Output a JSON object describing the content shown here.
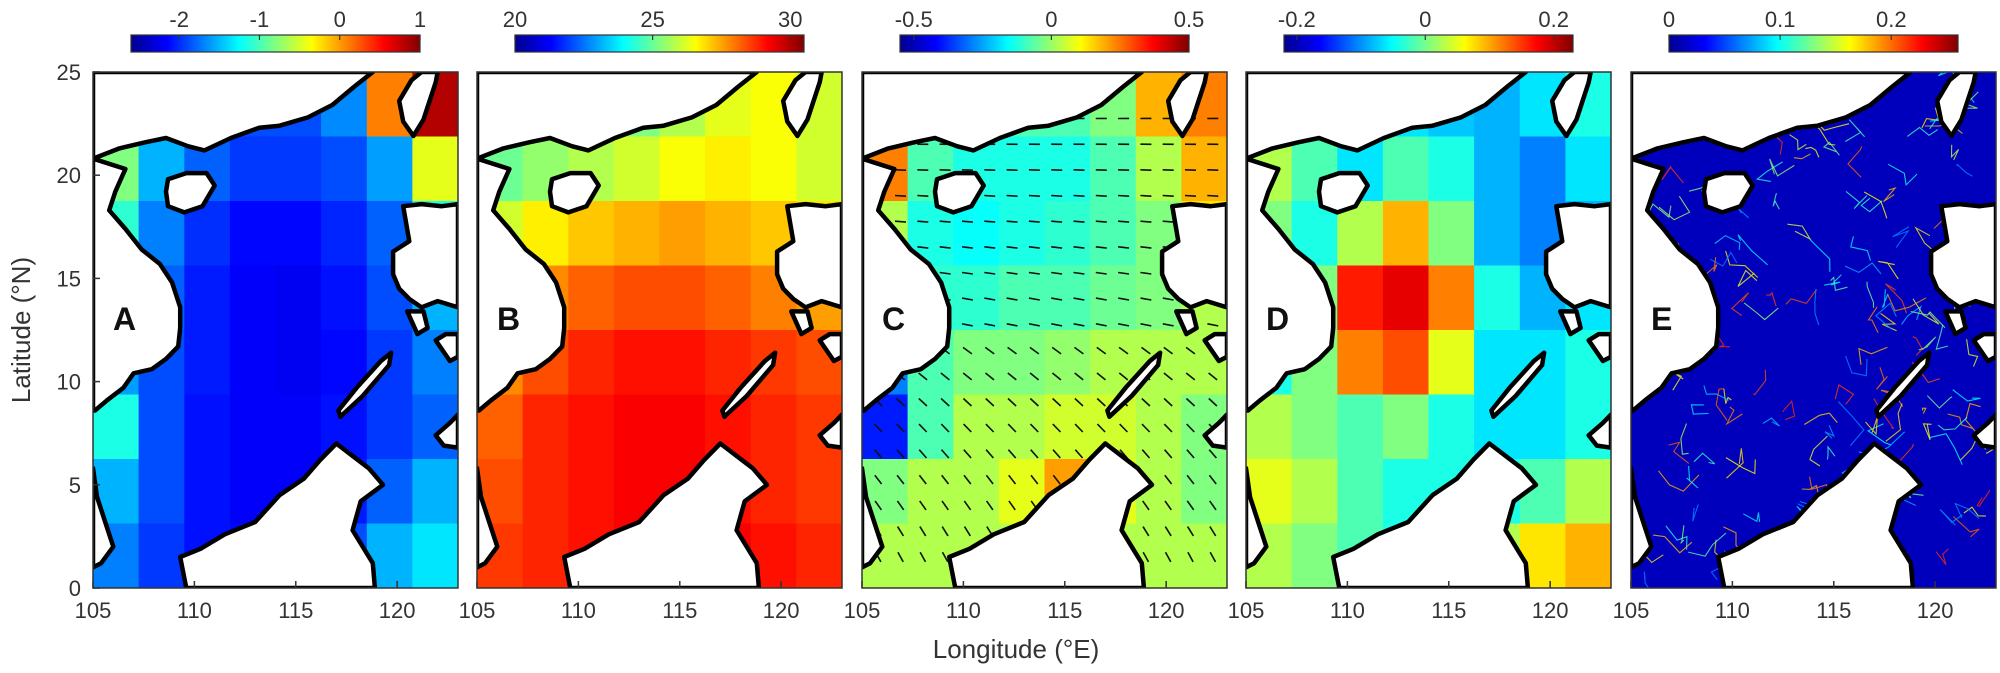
{
  "figure": {
    "xlabel": "Longitude (°E)",
    "ylabel": "Latitude (°N)",
    "x_ticks": [
      "105",
      "110",
      "115",
      "120"
    ],
    "y_ticks": [
      "0",
      "5",
      "10",
      "15",
      "20",
      "25"
    ],
    "xlim": [
      105,
      123
    ],
    "ylim": [
      0,
      25
    ]
  },
  "colors": {
    "land": "#ffffff",
    "coastline": "#000000",
    "colormap": [
      "#00008f",
      "#0000ff",
      "#0080ff",
      "#00ffff",
      "#80ff80",
      "#ffff00",
      "#ff8000",
      "#ff0000",
      "#800000"
    ]
  },
  "chart_data": [
    {
      "type": "heatmap",
      "panel": "A",
      "colorbar_ticks": [
        "-2",
        "-1",
        "0",
        "1"
      ],
      "colorbar_range": [
        -2.6,
        1.0
      ],
      "field_levels": [
        [
          0.3,
          0.26,
          0.22,
          0.2,
          0.2,
          0.26,
          0.75,
          0.95
        ],
        [
          0.5,
          0.3,
          0.22,
          0.18,
          0.18,
          0.2,
          0.28,
          0.6
        ],
        [
          0.42,
          0.25,
          0.17,
          0.13,
          0.13,
          0.16,
          0.22,
          0.4
        ],
        [
          0.32,
          0.22,
          0.15,
          0.12,
          0.11,
          0.14,
          0.2,
          0.3
        ],
        [
          0.28,
          0.2,
          0.15,
          0.12,
          0.11,
          0.13,
          0.18,
          0.25
        ],
        [
          0.4,
          0.2,
          0.14,
          0.12,
          0.12,
          0.14,
          0.18,
          0.22
        ],
        [
          0.3,
          0.2,
          0.14,
          0.12,
          0.12,
          0.15,
          0.22,
          0.3
        ],
        [
          0.25,
          0.18,
          0.14,
          0.13,
          0.14,
          0.2,
          0.3,
          0.35
        ]
      ]
    },
    {
      "type": "heatmap",
      "panel": "B",
      "colorbar_ticks": [
        "20",
        "25",
        "30"
      ],
      "colorbar_range": [
        20,
        30.5
      ],
      "field_levels": [
        [
          0.4,
          0.42,
          0.45,
          0.5,
          0.55,
          0.6,
          0.62,
          0.58
        ],
        [
          0.48,
          0.52,
          0.55,
          0.58,
          0.62,
          0.64,
          0.62,
          0.58
        ],
        [
          0.58,
          0.64,
          0.68,
          0.7,
          0.72,
          0.7,
          0.68,
          0.65
        ],
        [
          0.68,
          0.74,
          0.78,
          0.8,
          0.8,
          0.78,
          0.75,
          0.72
        ],
        [
          0.74,
          0.8,
          0.84,
          0.86,
          0.86,
          0.84,
          0.82,
          0.8
        ],
        [
          0.78,
          0.84,
          0.86,
          0.88,
          0.88,
          0.86,
          0.84,
          0.82
        ],
        [
          0.8,
          0.84,
          0.86,
          0.88,
          0.88,
          0.86,
          0.84,
          0.82
        ],
        [
          0.82,
          0.84,
          0.86,
          0.88,
          0.88,
          0.88,
          0.86,
          0.84
        ]
      ]
    },
    {
      "type": "heatmap",
      "panel": "C",
      "colorbar_ticks": [
        "-0.5",
        "0",
        "0.5"
      ],
      "colorbar_range": [
        -0.55,
        0.5
      ],
      "field_levels": [
        [
          0.55,
          0.55,
          0.5,
          0.45,
          0.45,
          0.5,
          0.7,
          0.75
        ],
        [
          0.75,
          0.45,
          0.4,
          0.4,
          0.4,
          0.45,
          0.55,
          0.7
        ],
        [
          0.55,
          0.4,
          0.38,
          0.4,
          0.42,
          0.45,
          0.5,
          0.65
        ],
        [
          0.45,
          0.42,
          0.42,
          0.45,
          0.45,
          0.48,
          0.5,
          0.55
        ],
        [
          0.25,
          0.45,
          0.5,
          0.5,
          0.52,
          0.55,
          0.55,
          0.55
        ],
        [
          0.15,
          0.45,
          0.55,
          0.55,
          0.58,
          0.58,
          0.55,
          0.5
        ],
        [
          0.5,
          0.55,
          0.55,
          0.6,
          0.72,
          0.6,
          0.55,
          0.5
        ],
        [
          0.55,
          0.55,
          0.55,
          0.55,
          0.55,
          0.55,
          0.55,
          0.55
        ]
      ]
    },
    {
      "type": "heatmap",
      "panel": "D",
      "colorbar_ticks": [
        "-0.2",
        "0",
        "0.2"
      ],
      "colorbar_range": [
        -0.22,
        0.23
      ],
      "field_levels": [
        [
          0.45,
          0.45,
          0.4,
          0.35,
          0.32,
          0.3,
          0.35,
          0.4
        ],
        [
          0.55,
          0.45,
          0.35,
          0.45,
          0.4,
          0.3,
          0.25,
          0.35
        ],
        [
          0.5,
          0.4,
          0.55,
          0.7,
          0.5,
          0.3,
          0.25,
          0.3
        ],
        [
          0.45,
          0.5,
          0.85,
          0.9,
          0.75,
          0.4,
          0.3,
          0.35
        ],
        [
          0.4,
          0.5,
          0.75,
          0.8,
          0.6,
          0.35,
          0.35,
          0.4
        ],
        [
          0.55,
          0.5,
          0.45,
          0.5,
          0.4,
          0.35,
          0.35,
          0.4
        ],
        [
          0.6,
          0.55,
          0.45,
          0.4,
          0.4,
          0.4,
          0.45,
          0.55
        ],
        [
          0.55,
          0.5,
          0.45,
          0.4,
          0.45,
          0.55,
          0.65,
          0.7
        ]
      ]
    },
    {
      "type": "heatmap",
      "panel": "E",
      "colorbar_ticks": [
        "0",
        "0.1",
        "0.2"
      ],
      "colorbar_range": [
        0,
        0.26
      ],
      "field_levels": [
        [
          0.05,
          0.05,
          0.05,
          0.05,
          0.05,
          0.05,
          0.05,
          0.05
        ],
        [
          0.05,
          0.05,
          0.05,
          0.05,
          0.05,
          0.05,
          0.05,
          0.05
        ],
        [
          0.05,
          0.05,
          0.05,
          0.05,
          0.05,
          0.05,
          0.05,
          0.05
        ],
        [
          0.05,
          0.05,
          0.05,
          0.05,
          0.05,
          0.05,
          0.05,
          0.05
        ],
        [
          0.05,
          0.05,
          0.05,
          0.05,
          0.05,
          0.05,
          0.05,
          0.05
        ],
        [
          0.05,
          0.05,
          0.05,
          0.05,
          0.05,
          0.05,
          0.05,
          0.05
        ],
        [
          0.05,
          0.05,
          0.05,
          0.05,
          0.05,
          0.05,
          0.05,
          0.05
        ],
        [
          0.05,
          0.05,
          0.05,
          0.05,
          0.05,
          0.05,
          0.05,
          0.05
        ]
      ]
    }
  ]
}
